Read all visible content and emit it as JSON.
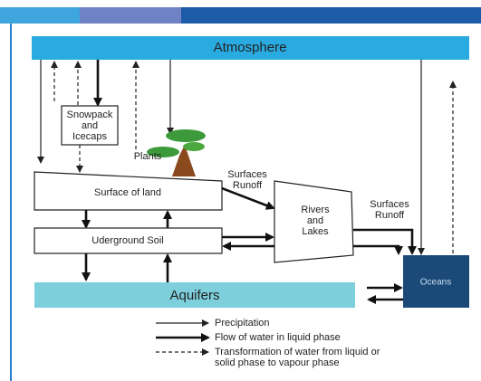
{
  "nodes": [
    {
      "label": [
        "Atmosphere"
      ]
    },
    {
      "label": [
        "Snowpack",
        "and",
        "Icecaps"
      ]
    },
    {
      "label": [
        "Plants"
      ]
    },
    {
      "label": [
        "Surface of land"
      ]
    },
    {
      "label": [
        "Surfaces",
        "Runoff"
      ]
    },
    {
      "label": [
        "Rivers",
        "and",
        "Lakes"
      ]
    },
    {
      "label": [
        "Surfaces",
        "Runoff"
      ]
    },
    {
      "label": [
        "Uderground Soil"
      ]
    },
    {
      "label": [
        "Aquifers"
      ]
    },
    {
      "label": [
        "Oceans"
      ]
    }
  ],
  "legend": [
    {
      "label": [
        "Precipitation"
      ]
    },
    {
      "label": [
        "Flow of water in liquid phase"
      ]
    },
    {
      "label": [
        "Transformation of water from liquid or",
        "solid phase to vapour phase"
      ]
    }
  ]
}
